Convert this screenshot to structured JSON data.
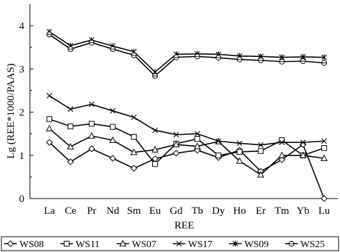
{
  "chart_data": {
    "type": "line",
    "title": "",
    "xlabel": "REE",
    "ylabel": "Lg (REE*1000/PAAS)",
    "ylim": [
      0,
      4.5
    ],
    "yticks": [
      "0",
      "1",
      "2",
      "3",
      "4"
    ],
    "grid": false,
    "legend_position": "bottom",
    "categories": [
      "La",
      "Ce",
      "Pr",
      "Nd",
      "Sm",
      "Eu",
      "Gd",
      "Tb",
      "Dy",
      "Ho",
      "Er",
      "Tm",
      "Yb",
      "Lu"
    ],
    "series": [
      {
        "name": "WS08",
        "marker": "diamond",
        "values": [
          1.3,
          0.85,
          1.15,
          0.93,
          0.7,
          0.92,
          1.05,
          1.12,
          0.95,
          1.12,
          0.63,
          0.9,
          1.25,
          0.0
        ]
      },
      {
        "name": "WS11",
        "marker": "square",
        "values": [
          1.84,
          1.67,
          1.73,
          1.66,
          1.43,
          0.8,
          1.27,
          1.38,
          1.0,
          1.08,
          1.1,
          1.35,
          1.0,
          1.17
        ]
      },
      {
        "name": "WS07",
        "marker": "triangle",
        "values": [
          1.62,
          1.2,
          1.45,
          1.35,
          1.07,
          1.13,
          1.25,
          1.21,
          1.32,
          0.87,
          0.55,
          1.0,
          1.0,
          0.93
        ]
      },
      {
        "name": "WS17",
        "marker": "x",
        "values": [
          2.38,
          2.07,
          2.18,
          2.03,
          1.88,
          1.58,
          1.48,
          1.5,
          1.33,
          1.28,
          1.24,
          1.3,
          1.3,
          1.33
        ]
      },
      {
        "name": "WS09",
        "marker": "star",
        "values": [
          3.86,
          3.54,
          3.67,
          3.53,
          3.4,
          2.93,
          3.34,
          3.35,
          3.34,
          3.3,
          3.29,
          3.27,
          3.28,
          3.27
        ]
      },
      {
        "name": "WS25",
        "marker": "circle",
        "values": [
          3.8,
          3.46,
          3.61,
          3.46,
          3.32,
          2.84,
          3.27,
          3.29,
          3.26,
          3.22,
          3.2,
          3.17,
          3.18,
          3.14
        ]
      }
    ]
  }
}
